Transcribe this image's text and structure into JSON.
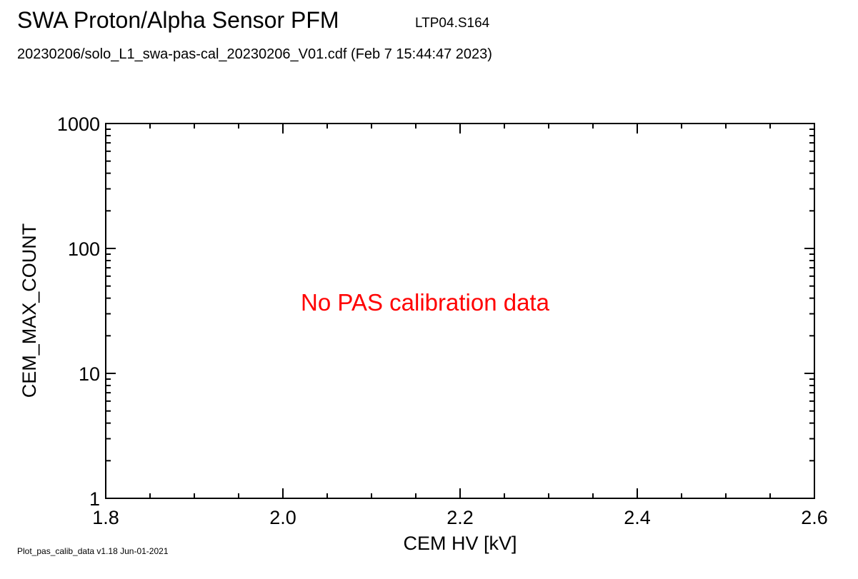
{
  "header": {
    "title": "SWA Proton/Alpha Sensor PFM",
    "tag": "LTP04.S164",
    "subtitle": "20230206/solo_L1_swa-pas-cal_20230206_V01.cdf  (Feb  7 15:44:47 2023)"
  },
  "footer": {
    "version": "Plot_pas_calib_data v1.18 Jun-01-2021"
  },
  "chart_data": {
    "type": "scatter",
    "xlabel": "CEM HV [kV]",
    "ylabel": "CEM_MAX_COUNT",
    "xlim": [
      1.8,
      2.6
    ],
    "ylim": [
      1,
      1000
    ],
    "yscale": "log",
    "x_ticks": [
      "1.8",
      "2.0",
      "2.2",
      "2.4",
      "2.6"
    ],
    "y_ticks": [
      "1",
      "10",
      "100",
      "1000"
    ],
    "grid": false,
    "series": [],
    "annotation": {
      "text": "No PAS calibration data",
      "color": "#ff0000"
    }
  }
}
